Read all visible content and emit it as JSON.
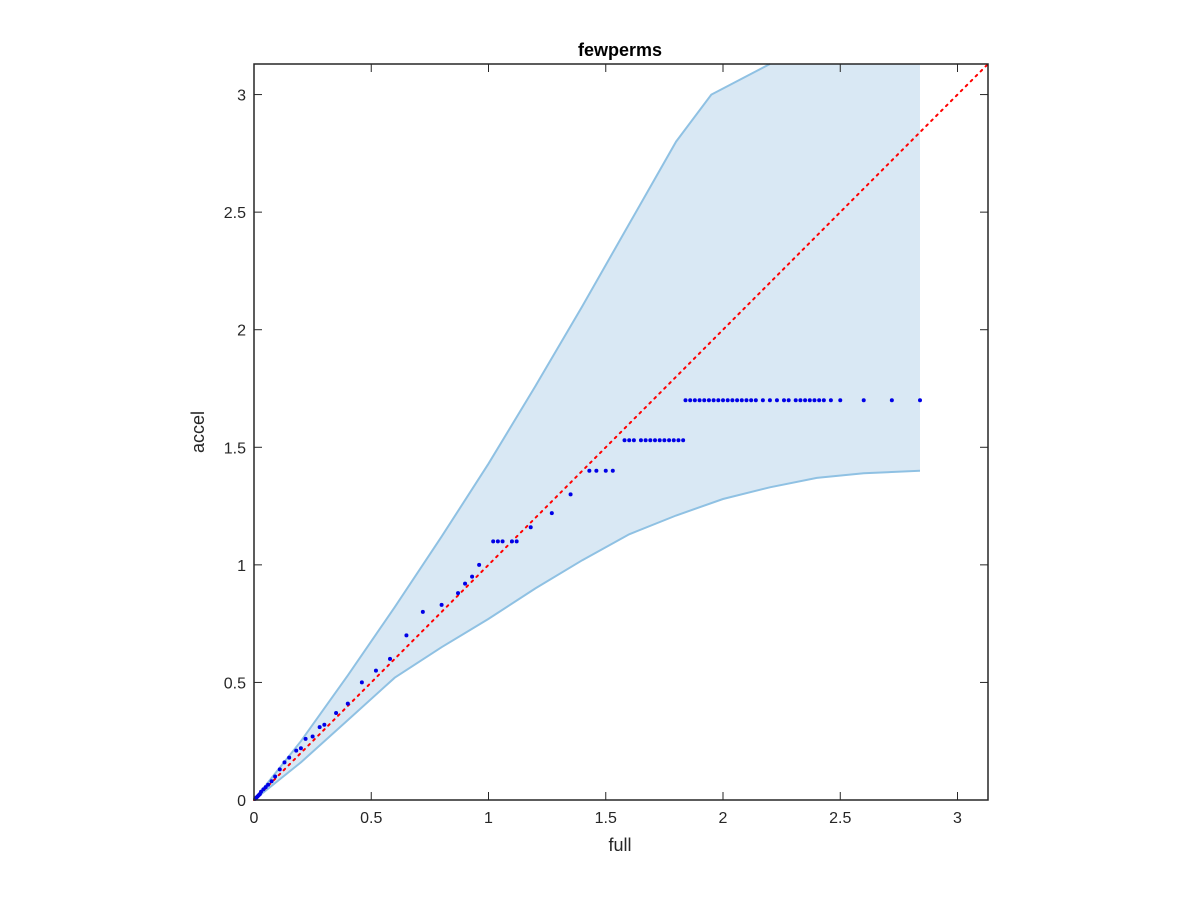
{
  "chart_data": {
    "type": "scatter",
    "title": "fewperms",
    "xlabel": "full",
    "ylabel": "accel",
    "xlim": [
      0,
      3.13
    ],
    "ylim": [
      0,
      3.13
    ],
    "xticks": [
      0,
      0.5,
      1,
      1.5,
      2,
      2.5,
      3
    ],
    "yticks": [
      0,
      0.5,
      1,
      1.5,
      2,
      2.5,
      3
    ],
    "xtick_labels": [
      "0",
      "0.5",
      "1",
      "1.5",
      "2",
      "2.5",
      "3"
    ],
    "ytick_labels": [
      "0",
      "0.5",
      "1",
      "1.5",
      "2",
      "2.5",
      "3"
    ],
    "grid": false,
    "colors": {
      "points": "#0000e6",
      "band_fill": "#d9e8f4",
      "band_edge": "#8fc1e3",
      "reference_line": "#ff0000",
      "axes": "#262626"
    },
    "band": {
      "upper": [
        [
          0,
          0
        ],
        [
          0.2,
          0.25
        ],
        [
          0.4,
          0.53
        ],
        [
          0.6,
          0.82
        ],
        [
          0.8,
          1.12
        ],
        [
          1.0,
          1.43
        ],
        [
          1.2,
          1.76
        ],
        [
          1.4,
          2.1
        ],
        [
          1.6,
          2.45
        ],
        [
          1.8,
          2.8
        ],
        [
          1.95,
          3.0
        ],
        [
          2.2,
          3.13
        ],
        [
          2.84,
          3.13
        ]
      ],
      "lower": [
        [
          0,
          0
        ],
        [
          0.2,
          0.16
        ],
        [
          0.4,
          0.34
        ],
        [
          0.6,
          0.52
        ],
        [
          0.8,
          0.65
        ],
        [
          1.0,
          0.77
        ],
        [
          1.2,
          0.9
        ],
        [
          1.4,
          1.02
        ],
        [
          1.6,
          1.13
        ],
        [
          1.8,
          1.21
        ],
        [
          2.0,
          1.28
        ],
        [
          2.2,
          1.33
        ],
        [
          2.4,
          1.37
        ],
        [
          2.6,
          1.39
        ],
        [
          2.84,
          1.4
        ]
      ]
    },
    "reference_line": [
      [
        0,
        0
      ],
      [
        3.13,
        3.13
      ]
    ],
    "points": [
      [
        0.005,
        0.005
      ],
      [
        0.01,
        0.01
      ],
      [
        0.015,
        0.015
      ],
      [
        0.02,
        0.02
      ],
      [
        0.025,
        0.025
      ],
      [
        0.03,
        0.035
      ],
      [
        0.04,
        0.045
      ],
      [
        0.05,
        0.055
      ],
      [
        0.06,
        0.065
      ],
      [
        0.075,
        0.08
      ],
      [
        0.09,
        0.1
      ],
      [
        0.11,
        0.13
      ],
      [
        0.13,
        0.16
      ],
      [
        0.15,
        0.18
      ],
      [
        0.18,
        0.21
      ],
      [
        0.2,
        0.22
      ],
      [
        0.22,
        0.26
      ],
      [
        0.25,
        0.27
      ],
      [
        0.28,
        0.31
      ],
      [
        0.3,
        0.32
      ],
      [
        0.35,
        0.37
      ],
      [
        0.4,
        0.41
      ],
      [
        0.46,
        0.5
      ],
      [
        0.52,
        0.55
      ],
      [
        0.58,
        0.6
      ],
      [
        0.65,
        0.7
      ],
      [
        0.72,
        0.8
      ],
      [
        0.8,
        0.83
      ],
      [
        0.87,
        0.88
      ],
      [
        0.9,
        0.92
      ],
      [
        0.93,
        0.95
      ],
      [
        0.96,
        1.0
      ],
      [
        1.02,
        1.1
      ],
      [
        1.04,
        1.1
      ],
      [
        1.06,
        1.1
      ],
      [
        1.1,
        1.1
      ],
      [
        1.12,
        1.1
      ],
      [
        1.18,
        1.16
      ],
      [
        1.27,
        1.22
      ],
      [
        1.35,
        1.3
      ],
      [
        1.43,
        1.4
      ],
      [
        1.46,
        1.4
      ],
      [
        1.5,
        1.4
      ],
      [
        1.53,
        1.4
      ],
      [
        1.58,
        1.53
      ],
      [
        1.6,
        1.53
      ],
      [
        1.62,
        1.53
      ],
      [
        1.65,
        1.53
      ],
      [
        1.67,
        1.53
      ],
      [
        1.69,
        1.53
      ],
      [
        1.71,
        1.53
      ],
      [
        1.73,
        1.53
      ],
      [
        1.75,
        1.53
      ],
      [
        1.77,
        1.53
      ],
      [
        1.79,
        1.53
      ],
      [
        1.81,
        1.53
      ],
      [
        1.83,
        1.53
      ],
      [
        1.84,
        1.7
      ],
      [
        1.86,
        1.7
      ],
      [
        1.88,
        1.7
      ],
      [
        1.9,
        1.7
      ],
      [
        1.92,
        1.7
      ],
      [
        1.94,
        1.7
      ],
      [
        1.96,
        1.7
      ],
      [
        1.98,
        1.7
      ],
      [
        2.0,
        1.7
      ],
      [
        2.02,
        1.7
      ],
      [
        2.04,
        1.7
      ],
      [
        2.06,
        1.7
      ],
      [
        2.08,
        1.7
      ],
      [
        2.1,
        1.7
      ],
      [
        2.12,
        1.7
      ],
      [
        2.14,
        1.7
      ],
      [
        2.17,
        1.7
      ],
      [
        2.2,
        1.7
      ],
      [
        2.23,
        1.7
      ],
      [
        2.26,
        1.7
      ],
      [
        2.28,
        1.7
      ],
      [
        2.31,
        1.7
      ],
      [
        2.33,
        1.7
      ],
      [
        2.35,
        1.7
      ],
      [
        2.37,
        1.7
      ],
      [
        2.39,
        1.7
      ],
      [
        2.41,
        1.7
      ],
      [
        2.43,
        1.7
      ],
      [
        2.46,
        1.7
      ],
      [
        2.5,
        1.7
      ],
      [
        2.6,
        1.7
      ],
      [
        2.72,
        1.7
      ],
      [
        2.84,
        1.7
      ]
    ]
  }
}
